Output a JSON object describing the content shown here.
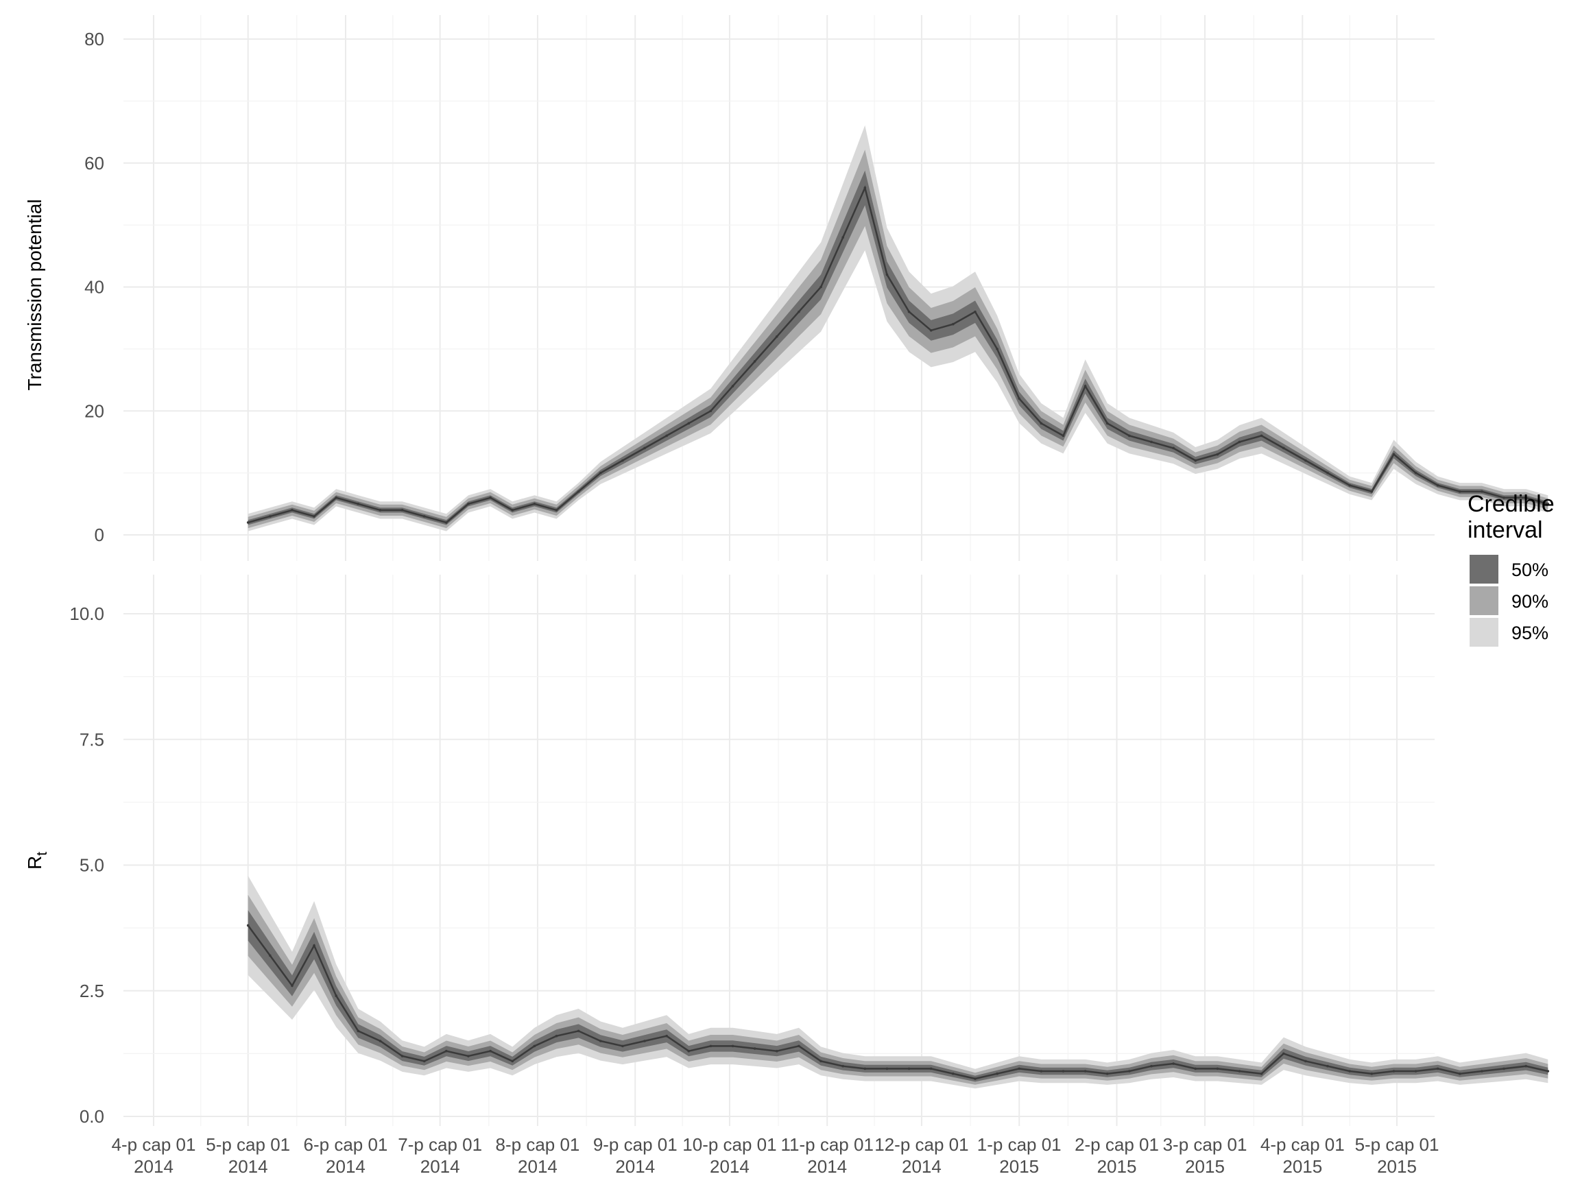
{
  "chart_data": [
    {
      "type": "area",
      "panel": "top",
      "ylabel": "Transmission potential",
      "ylim": [
        0,
        80
      ],
      "y_ticks": [
        0,
        20,
        40,
        60,
        80
      ],
      "grid": true,
      "x_ticks": [
        "4-p cap 01\n2014",
        "5-p cap 01\n2014",
        "6-p cap 01\n2014",
        "7-p cap 01\n2014",
        "8-p cap 01\n2014",
        "9-p cap 01\n2014",
        "10-p cap 01\n2014",
        "11-p cap 01\n2014",
        "12-p cap 01\n2014",
        "1-p cap 01\n2015",
        "2-p cap 01\n2015",
        "3-p cap 01\n2015",
        "4-p cap 01\n2015",
        "5-p cap 01\n2015"
      ],
      "series_median": {
        "x": [
          "2014-05-01",
          "2014-05-08",
          "2014-05-15",
          "2014-05-22",
          "2014-05-29",
          "2014-06-05",
          "2014-06-12",
          "2014-06-19",
          "2014-06-26",
          "2014-07-03",
          "2014-07-10",
          "2014-07-17",
          "2014-07-24",
          "2014-07-31",
          "2014-08-07",
          "2014-08-14",
          "2014-08-21",
          "2014-08-28",
          "2014-09-04",
          "2014-09-11",
          "2014-09-18",
          "2014-09-25",
          "2014-10-02",
          "2014-10-09",
          "2014-10-16",
          "2014-10-23",
          "2014-10-30",
          "2014-11-06",
          "2014-11-13",
          "2014-11-20",
          "2014-11-27",
          "2014-12-04",
          "2014-12-11",
          "2014-12-18",
          "2014-12-25",
          "2015-01-01",
          "2015-01-08",
          "2015-01-15",
          "2015-01-22",
          "2015-01-29",
          "2015-02-05",
          "2015-02-12",
          "2015-02-19",
          "2015-02-26",
          "2015-03-05",
          "2015-03-12",
          "2015-03-19",
          "2015-03-26",
          "2015-04-02",
          "2015-04-09",
          "2015-04-16",
          "2015-04-23",
          "2015-04-30",
          "2015-05-07",
          "2015-05-14",
          "2015-05-21",
          "2015-05-28",
          "2015-06-04",
          "2015-06-11",
          "2015-06-18"
        ],
        "y": [
          2,
          3,
          4,
          3,
          6,
          5,
          4,
          4,
          3,
          2,
          5,
          6,
          4,
          5,
          4,
          7,
          10,
          12,
          14,
          16,
          18,
          20,
          24,
          28,
          32,
          36,
          40,
          48,
          56,
          42,
          36,
          33,
          34,
          36,
          30,
          22,
          18,
          16,
          24,
          18,
          16,
          15,
          14,
          12,
          13,
          15,
          16,
          14,
          12,
          10,
          8,
          7,
          13,
          10,
          8,
          7,
          7,
          6,
          6,
          5
        ]
      },
      "legend": {
        "title": "Credible\ninterval",
        "entries": [
          "50%",
          "90%",
          "95%"
        ],
        "colors": [
          "#6e6e6e",
          "#a9a9a9",
          "#d9d9d9"
        ],
        "placement": "right"
      }
    },
    {
      "type": "area",
      "panel": "bottom",
      "ylabel_main": "R",
      "ylabel_sub": "t",
      "ylim": [
        0,
        10
      ],
      "y_ticks": [
        "0.0",
        "2.5",
        "5.0",
        "7.5",
        "10.0"
      ],
      "grid": true,
      "series_median": {
        "x": [
          "2014-05-01",
          "2014-05-08",
          "2014-05-15",
          "2014-05-22",
          "2014-05-29",
          "2014-06-05",
          "2014-06-12",
          "2014-06-19",
          "2014-06-26",
          "2014-07-03",
          "2014-07-10",
          "2014-07-17",
          "2014-07-24",
          "2014-07-31",
          "2014-08-07",
          "2014-08-14",
          "2014-08-21",
          "2014-08-28",
          "2014-09-04",
          "2014-09-11",
          "2014-09-18",
          "2014-09-25",
          "2014-10-02",
          "2014-10-09",
          "2014-10-16",
          "2014-10-23",
          "2014-10-30",
          "2014-11-06",
          "2014-11-13",
          "2014-11-20",
          "2014-11-27",
          "2014-12-04",
          "2014-12-11",
          "2014-12-18",
          "2014-12-25",
          "2015-01-01",
          "2015-01-08",
          "2015-01-15",
          "2015-01-22",
          "2015-01-29",
          "2015-02-05",
          "2015-02-12",
          "2015-02-19",
          "2015-02-26",
          "2015-03-05",
          "2015-03-12",
          "2015-03-19",
          "2015-03-26",
          "2015-04-02",
          "2015-04-09",
          "2015-04-16",
          "2015-04-23",
          "2015-04-30",
          "2015-05-07",
          "2015-05-14",
          "2015-05-21",
          "2015-05-28",
          "2015-06-04",
          "2015-06-11",
          "2015-06-18"
        ],
        "y": [
          3.8,
          3.2,
          2.6,
          3.4,
          2.4,
          1.7,
          1.5,
          1.2,
          1.1,
          1.3,
          1.2,
          1.3,
          1.1,
          1.4,
          1.6,
          1.7,
          1.5,
          1.4,
          1.5,
          1.6,
          1.3,
          1.4,
          1.4,
          1.35,
          1.3,
          1.4,
          1.1,
          1.0,
          0.95,
          0.95,
          0.95,
          0.95,
          0.85,
          0.75,
          0.85,
          0.95,
          0.9,
          0.9,
          0.9,
          0.85,
          0.9,
          1.0,
          1.05,
          0.95,
          0.95,
          0.9,
          0.85,
          1.25,
          1.1,
          1.0,
          0.9,
          0.85,
          0.9,
          0.9,
          0.95,
          0.85,
          0.9,
          0.95,
          1.0,
          0.9
        ]
      }
    }
  ]
}
